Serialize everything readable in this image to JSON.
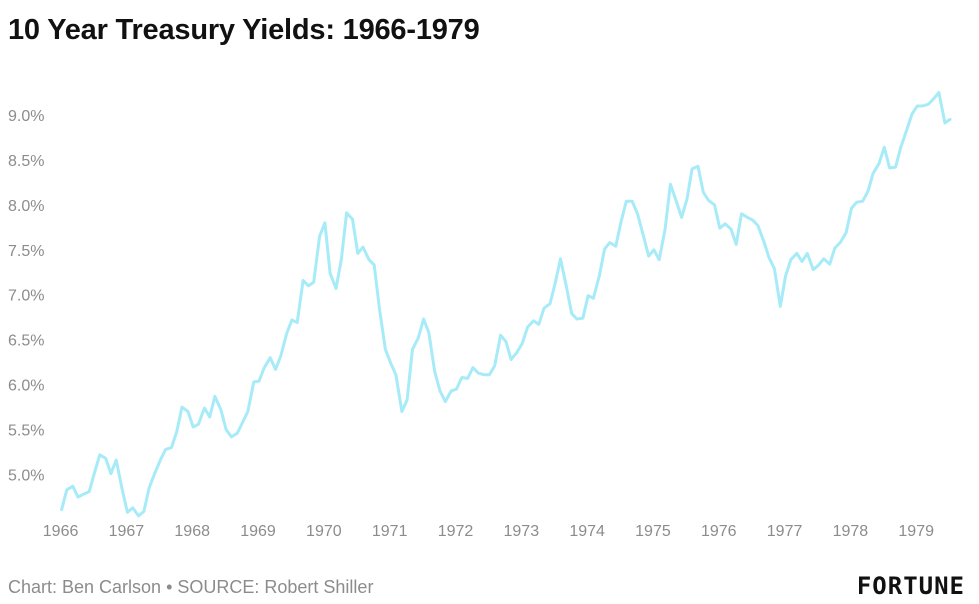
{
  "chart_data": {
    "type": "line",
    "title": "10 Year Treasury Yields: 1966-1979",
    "xlabel": "",
    "ylabel": "",
    "x_ticks": [
      "1966",
      "1967",
      "1968",
      "1969",
      "1970",
      "1971",
      "1972",
      "1973",
      "1974",
      "1975",
      "1976",
      "1977",
      "1978",
      "1979"
    ],
    "y_ticks": [
      "5.0%",
      "5.5%",
      "6.0%",
      "6.5%",
      "7.0%",
      "7.5%",
      "8.0%",
      "8.5%",
      "9.0%"
    ],
    "xlim": [
      1965.9,
      1979.65
    ],
    "ylim": [
      4.55,
      9.5
    ],
    "grid": false,
    "legend": "none",
    "series": [
      {
        "color": "#a6ebf7",
        "values": [
          [
            1966.0,
            4.61
          ],
          [
            1966.08,
            4.83
          ],
          [
            1966.17,
            4.87
          ],
          [
            1966.25,
            4.75
          ],
          [
            1966.33,
            4.78
          ],
          [
            1966.42,
            4.81
          ],
          [
            1966.5,
            5.02
          ],
          [
            1966.58,
            5.22
          ],
          [
            1966.67,
            5.18
          ],
          [
            1966.75,
            5.01
          ],
          [
            1966.83,
            5.16
          ],
          [
            1966.92,
            4.84
          ],
          [
            1967.0,
            4.58
          ],
          [
            1967.08,
            4.63
          ],
          [
            1967.17,
            4.54
          ],
          [
            1967.25,
            4.59
          ],
          [
            1967.33,
            4.85
          ],
          [
            1967.42,
            5.02
          ],
          [
            1967.5,
            5.16
          ],
          [
            1967.58,
            5.28
          ],
          [
            1967.67,
            5.3
          ],
          [
            1967.75,
            5.48
          ],
          [
            1967.83,
            5.75
          ],
          [
            1967.92,
            5.7
          ],
          [
            1968.0,
            5.53
          ],
          [
            1968.08,
            5.56
          ],
          [
            1968.17,
            5.74
          ],
          [
            1968.25,
            5.64
          ],
          [
            1968.33,
            5.87
          ],
          [
            1968.42,
            5.72
          ],
          [
            1968.5,
            5.5
          ],
          [
            1968.58,
            5.42
          ],
          [
            1968.67,
            5.46
          ],
          [
            1968.75,
            5.58
          ],
          [
            1968.83,
            5.7
          ],
          [
            1968.92,
            6.03
          ],
          [
            1969.0,
            6.04
          ],
          [
            1969.08,
            6.19
          ],
          [
            1969.17,
            6.3
          ],
          [
            1969.25,
            6.17
          ],
          [
            1969.33,
            6.32
          ],
          [
            1969.42,
            6.57
          ],
          [
            1969.5,
            6.72
          ],
          [
            1969.58,
            6.69
          ],
          [
            1969.67,
            7.16
          ],
          [
            1969.75,
            7.1
          ],
          [
            1969.83,
            7.14
          ],
          [
            1969.92,
            7.65
          ],
          [
            1970.0,
            7.8
          ],
          [
            1970.08,
            7.24
          ],
          [
            1970.17,
            7.07
          ],
          [
            1970.25,
            7.39
          ],
          [
            1970.33,
            7.91
          ],
          [
            1970.42,
            7.84
          ],
          [
            1970.5,
            7.46
          ],
          [
            1970.58,
            7.53
          ],
          [
            1970.67,
            7.39
          ],
          [
            1970.75,
            7.33
          ],
          [
            1970.83,
            6.84
          ],
          [
            1970.92,
            6.39
          ],
          [
            1971.0,
            6.24
          ],
          [
            1971.08,
            6.11
          ],
          [
            1971.17,
            5.7
          ],
          [
            1971.25,
            5.83
          ],
          [
            1971.33,
            6.39
          ],
          [
            1971.42,
            6.52
          ],
          [
            1971.5,
            6.73
          ],
          [
            1971.58,
            6.58
          ],
          [
            1971.67,
            6.14
          ],
          [
            1971.75,
            5.93
          ],
          [
            1971.83,
            5.81
          ],
          [
            1971.92,
            5.93
          ],
          [
            1972.0,
            5.95
          ],
          [
            1972.08,
            6.08
          ],
          [
            1972.17,
            6.07
          ],
          [
            1972.25,
            6.19
          ],
          [
            1972.33,
            6.13
          ],
          [
            1972.42,
            6.11
          ],
          [
            1972.5,
            6.11
          ],
          [
            1972.58,
            6.21
          ],
          [
            1972.67,
            6.55
          ],
          [
            1972.75,
            6.48
          ],
          [
            1972.83,
            6.28
          ],
          [
            1972.92,
            6.36
          ],
          [
            1973.0,
            6.46
          ],
          [
            1973.08,
            6.64
          ],
          [
            1973.17,
            6.71
          ],
          [
            1973.25,
            6.67
          ],
          [
            1973.33,
            6.85
          ],
          [
            1973.42,
            6.9
          ],
          [
            1973.5,
            7.13
          ],
          [
            1973.58,
            7.4
          ],
          [
            1973.67,
            7.09
          ],
          [
            1973.75,
            6.79
          ],
          [
            1973.83,
            6.73
          ],
          [
            1973.92,
            6.74
          ],
          [
            1974.0,
            6.99
          ],
          [
            1974.08,
            6.96
          ],
          [
            1974.17,
            7.21
          ],
          [
            1974.25,
            7.51
          ],
          [
            1974.33,
            7.58
          ],
          [
            1974.42,
            7.54
          ],
          [
            1974.5,
            7.81
          ],
          [
            1974.58,
            8.04
          ],
          [
            1974.67,
            8.04
          ],
          [
            1974.75,
            7.9
          ],
          [
            1974.83,
            7.68
          ],
          [
            1974.92,
            7.43
          ],
          [
            1975.0,
            7.5
          ],
          [
            1975.08,
            7.39
          ],
          [
            1975.17,
            7.73
          ],
          [
            1975.25,
            8.23
          ],
          [
            1975.33,
            8.06
          ],
          [
            1975.42,
            7.86
          ],
          [
            1975.5,
            8.06
          ],
          [
            1975.58,
            8.4
          ],
          [
            1975.67,
            8.43
          ],
          [
            1975.75,
            8.14
          ],
          [
            1975.83,
            8.05
          ],
          [
            1975.92,
            8.0
          ],
          [
            1976.0,
            7.74
          ],
          [
            1976.08,
            7.79
          ],
          [
            1976.17,
            7.73
          ],
          [
            1976.25,
            7.56
          ],
          [
            1976.33,
            7.9
          ],
          [
            1976.42,
            7.86
          ],
          [
            1976.5,
            7.83
          ],
          [
            1976.58,
            7.77
          ],
          [
            1976.67,
            7.59
          ],
          [
            1976.75,
            7.41
          ],
          [
            1976.83,
            7.29
          ],
          [
            1976.92,
            6.87
          ],
          [
            1977.0,
            7.21
          ],
          [
            1977.08,
            7.39
          ],
          [
            1977.17,
            7.46
          ],
          [
            1977.25,
            7.37
          ],
          [
            1977.33,
            7.46
          ],
          [
            1977.42,
            7.28
          ],
          [
            1977.5,
            7.33
          ],
          [
            1977.58,
            7.4
          ],
          [
            1977.67,
            7.34
          ],
          [
            1977.75,
            7.52
          ],
          [
            1977.83,
            7.58
          ],
          [
            1977.92,
            7.69
          ],
          [
            1978.0,
            7.96
          ],
          [
            1978.08,
            8.03
          ],
          [
            1978.17,
            8.04
          ],
          [
            1978.25,
            8.15
          ],
          [
            1978.33,
            8.35
          ],
          [
            1978.42,
            8.46
          ],
          [
            1978.5,
            8.64
          ],
          [
            1978.58,
            8.41
          ],
          [
            1978.67,
            8.42
          ],
          [
            1978.75,
            8.64
          ],
          [
            1978.83,
            8.81
          ],
          [
            1978.92,
            9.01
          ],
          [
            1979.0,
            9.1
          ],
          [
            1979.08,
            9.1
          ],
          [
            1979.17,
            9.12
          ],
          [
            1979.25,
            9.18
          ],
          [
            1979.33,
            9.25
          ],
          [
            1979.42,
            8.91
          ],
          [
            1979.5,
            8.95
          ]
        ]
      }
    ]
  },
  "footer": {
    "source": "Chart: Ben Carlson • SOURCE: Robert Shiller",
    "logo": "FORTUNE"
  },
  "colors": {
    "line": "#a6ebf7",
    "tick_text": "#8c8c8c",
    "title_text": "#111111"
  }
}
